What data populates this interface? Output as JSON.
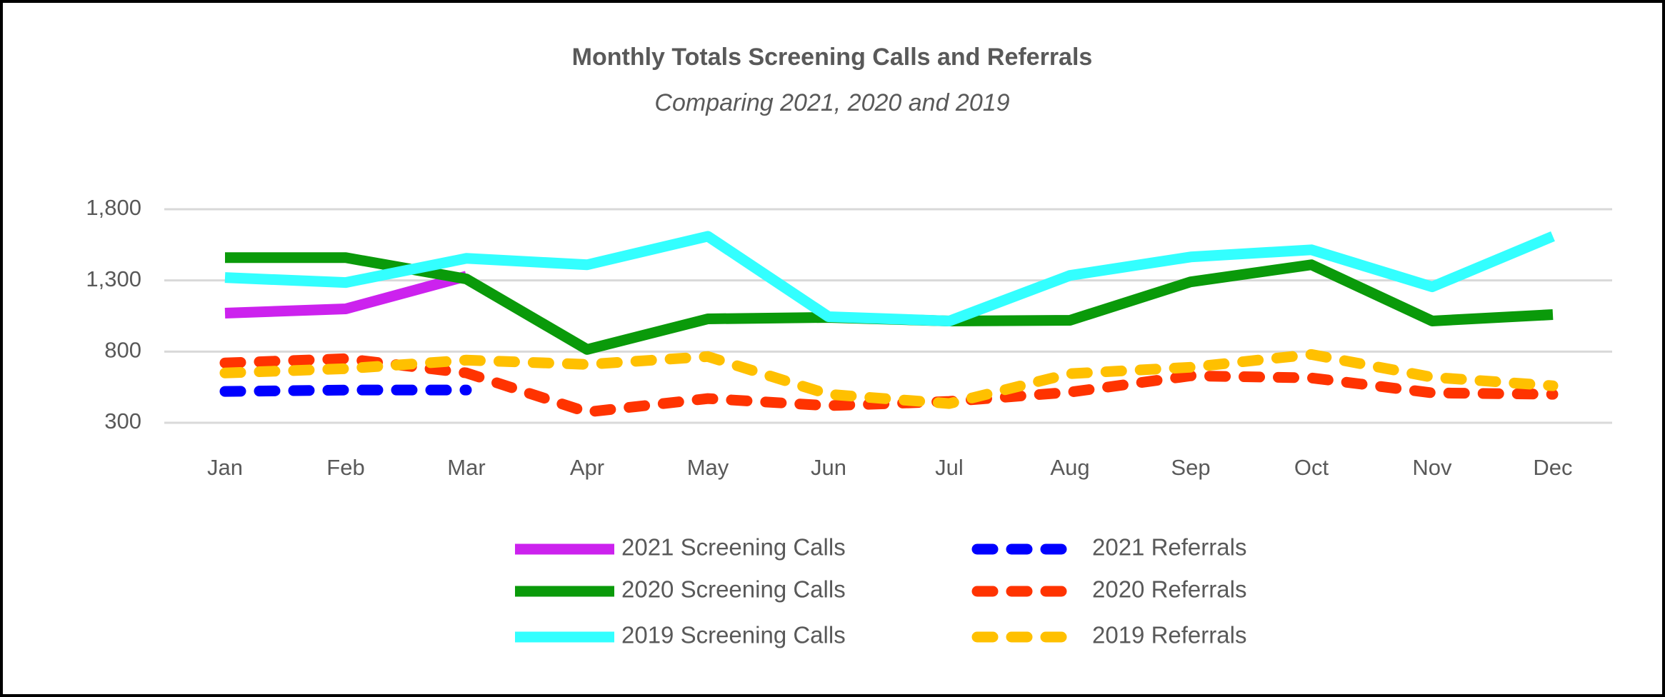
{
  "chart_data": {
    "type": "line",
    "title": "Monthly Totals Screening Calls and Referrals",
    "subtitle": "Comparing 2021, 2020 and 2019",
    "categories": [
      "Jan",
      "Feb",
      "Mar",
      "Apr",
      "May",
      "Jun",
      "Jul",
      "Aug",
      "Sep",
      "Oct",
      "Nov",
      "Dec"
    ],
    "ylim": [
      300,
      1800
    ],
    "yticks": [
      300,
      800,
      {
        "value": 1300,
        "label": "1,300"
      },
      {
        "value": 1800,
        "label": "1,800"
      }
    ],
    "grid": true,
    "legend": "bottom",
    "series": [
      {
        "name": "2021 Screening Calls",
        "color": "#cc22ee",
        "style": "solid",
        "values": [
          1070,
          1100,
          1330,
          null,
          null,
          null,
          null,
          null,
          null,
          null,
          null,
          null
        ]
      },
      {
        "name": "2020 Screening Calls",
        "color": "#0a9a0a",
        "style": "solid",
        "values": [
          1460,
          1460,
          1310,
          815,
          1030,
          1040,
          1015,
          1020,
          1290,
          1410,
          1015,
          1060
        ]
      },
      {
        "name": "2019 Screening Calls",
        "color": "#33ffff",
        "style": "solid",
        "values": [
          1320,
          1285,
          1455,
          1410,
          1610,
          1045,
          1015,
          1335,
          1465,
          1515,
          1255,
          1610
        ]
      },
      {
        "name": "2021 Referrals",
        "color": "#0000ff",
        "style": "dashed",
        "values": [
          520,
          530,
          530,
          null,
          null,
          null,
          null,
          null,
          null,
          null,
          null,
          null
        ]
      },
      {
        "name": "2020 Referrals",
        "color": "#ff3300",
        "style": "dashed",
        "values": [
          720,
          750,
          650,
          375,
          470,
          420,
          450,
          515,
          630,
          615,
          510,
          500
        ]
      },
      {
        "name": "2019 Referrals",
        "color": "#ffc000",
        "style": "dashed",
        "values": [
          650,
          680,
          740,
          710,
          765,
          500,
          435,
          645,
          690,
          780,
          620,
          560
        ]
      }
    ]
  }
}
